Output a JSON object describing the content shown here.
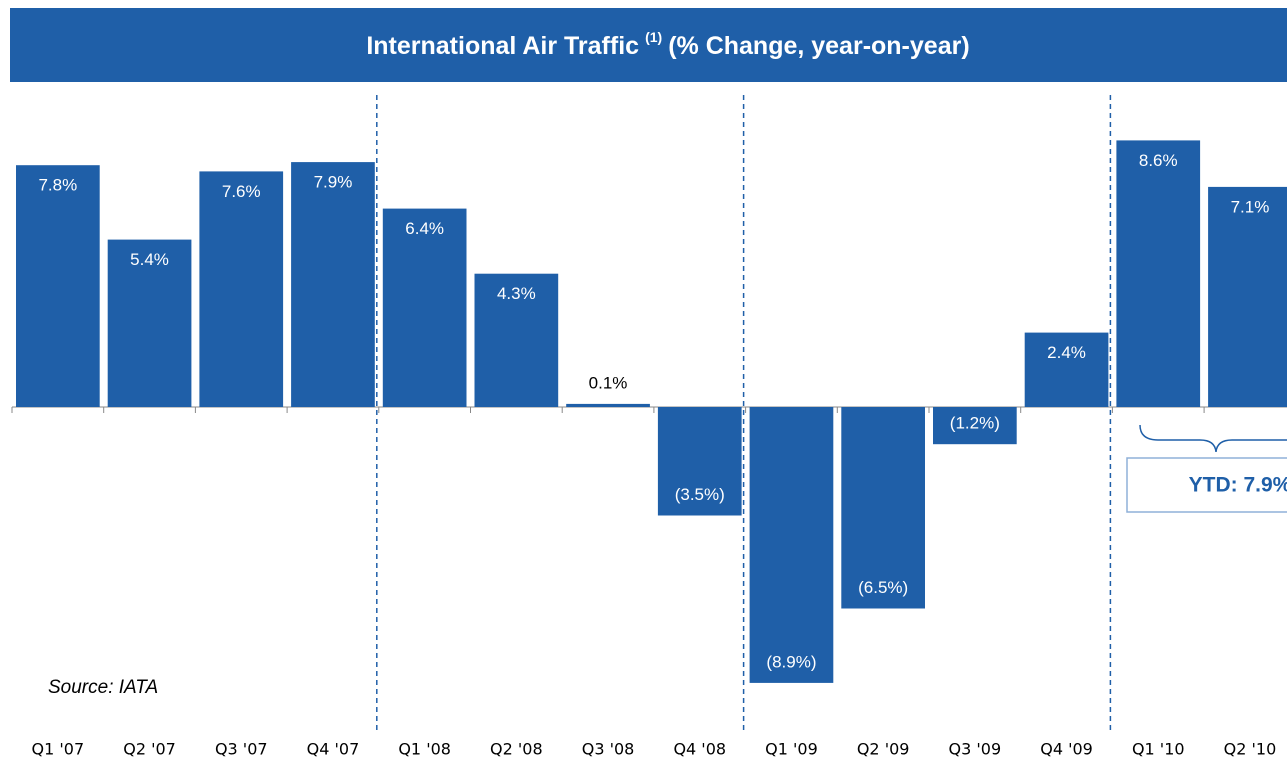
{
  "chart_data": {
    "type": "bar",
    "title": "International Air Traffic",
    "title_superscript": "(1)",
    "subtitle": "(% Change, year-on-year)",
    "categories": [
      "Q1 '07",
      "Q2 '07",
      "Q3 '07",
      "Q4 '07",
      "Q1 '08",
      "Q2 '08",
      "Q3 '08",
      "Q4 '08",
      "Q1 '09",
      "Q2 '09",
      "Q3 '09",
      "Q4 '09",
      "Q1 '10",
      "Q2 '10"
    ],
    "values": [
      7.8,
      5.4,
      7.6,
      7.9,
      6.4,
      4.3,
      0.1,
      -3.5,
      -8.9,
      -6.5,
      -1.2,
      2.4,
      8.6,
      7.1
    ],
    "value_labels": [
      "7.8%",
      "5.4%",
      "7.6%",
      "7.9%",
      "6.4%",
      "4.3%",
      "0.1%",
      "(3.5%)",
      "(8.9%)",
      "(6.5%)",
      "(1.2%)",
      "2.4%",
      "8.6%",
      "7.1%"
    ],
    "color": "#1f5fa8",
    "annotation": "YTD: 7.9%",
    "source": "Source: IATA"
  }
}
